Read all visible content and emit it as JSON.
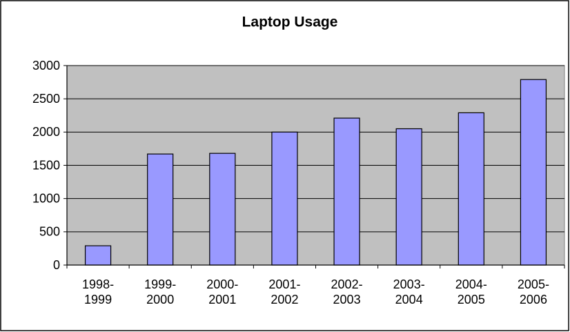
{
  "chart_data": {
    "type": "bar",
    "title": "Laptop Usage",
    "categories": [
      "1998-1999",
      "1999-2000",
      "2000-2001",
      "2001-2002",
      "2002-2003",
      "2003-2004",
      "2004-2005",
      "2005-2006"
    ],
    "values": [
      290,
      1670,
      1680,
      2000,
      2210,
      2050,
      2290,
      2790
    ],
    "color": "#9999ff",
    "ylim": [
      0,
      3000
    ],
    "yticks": [
      0,
      500,
      1000,
      1500,
      2000,
      2500,
      3000
    ],
    "grid": true
  }
}
